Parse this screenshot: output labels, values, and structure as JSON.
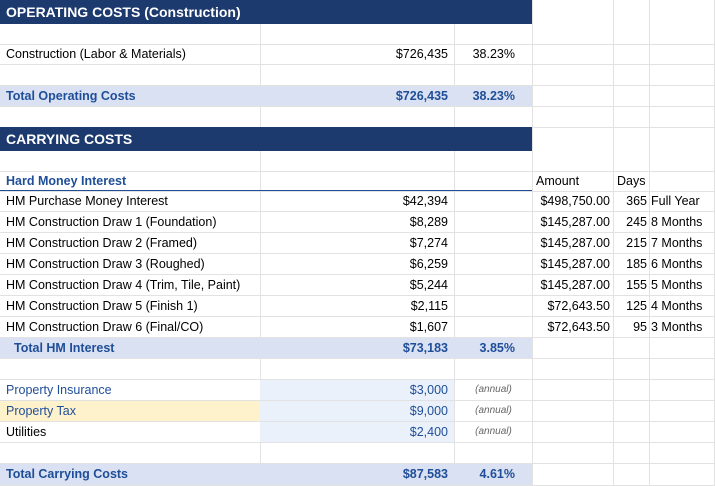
{
  "operating": {
    "header": "OPERATING COSTS  (Construction)",
    "construction": {
      "label": "Construction (Labor & Materials)",
      "amount": "$726,435",
      "pct": "38.23%"
    },
    "total": {
      "label": "Total Operating Costs",
      "amount": "$726,435",
      "pct": "38.23%"
    }
  },
  "carrying": {
    "header": "CARRYING COSTS",
    "hm_title": "Hard Money Interest",
    "side_headers": {
      "amount": "Amount",
      "days": "Days"
    },
    "hm_rows": [
      {
        "label": "HM Purchase Money Interest",
        "amount": "$42,394",
        "base": "$498,750.00",
        "days": "365",
        "period": "Full Year"
      },
      {
        "label": "HM Construction Draw 1 (Foundation)",
        "amount": "$8,289",
        "base": "$145,287.00",
        "days": "245",
        "period": "8 Months"
      },
      {
        "label": "HM Construction Draw 2 (Framed)",
        "amount": "$7,274",
        "base": "$145,287.00",
        "days": "215",
        "period": "7 Months"
      },
      {
        "label": "HM Construction Draw 3 (Roughed)",
        "amount": "$6,259",
        "base": "$145,287.00",
        "days": "185",
        "period": "6 Months"
      },
      {
        "label": "HM Construction Draw 4 (Trim, Tile, Paint)",
        "amount": "$5,244",
        "base": "$145,287.00",
        "days": "155",
        "period": "5 Months"
      },
      {
        "label": "HM Construction Draw 5 (Finish 1)",
        "amount": "$2,115",
        "base": "$72,643.50",
        "days": "125",
        "period": "4 Months"
      },
      {
        "label": "HM Construction Draw 6 (Final/CO)",
        "amount": "$1,607",
        "base": "$72,643.50",
        "days": "95",
        "period": "3 Months"
      }
    ],
    "hm_total": {
      "label": "Total HM Interest",
      "amount": "$73,183",
      "pct": "3.85%"
    },
    "other": [
      {
        "label": "Property Insurance",
        "amount": "$3,000",
        "note": "(annual)"
      },
      {
        "label": "Property Tax",
        "amount": "$9,000",
        "note": "(annual)"
      },
      {
        "label": "Utilities",
        "amount": "$2,400",
        "note": "(annual)"
      }
    ],
    "total": {
      "label": "Total Carrying Costs",
      "amount": "$87,583",
      "pct": "4.61%"
    }
  },
  "colors": {
    "header_bg": "#1d3a6e",
    "total_band": "#d9e1f2",
    "input_blue": "#eaf1fb",
    "tax_yellow": "#fdf2cc",
    "link_blue": "#1f4e99"
  }
}
